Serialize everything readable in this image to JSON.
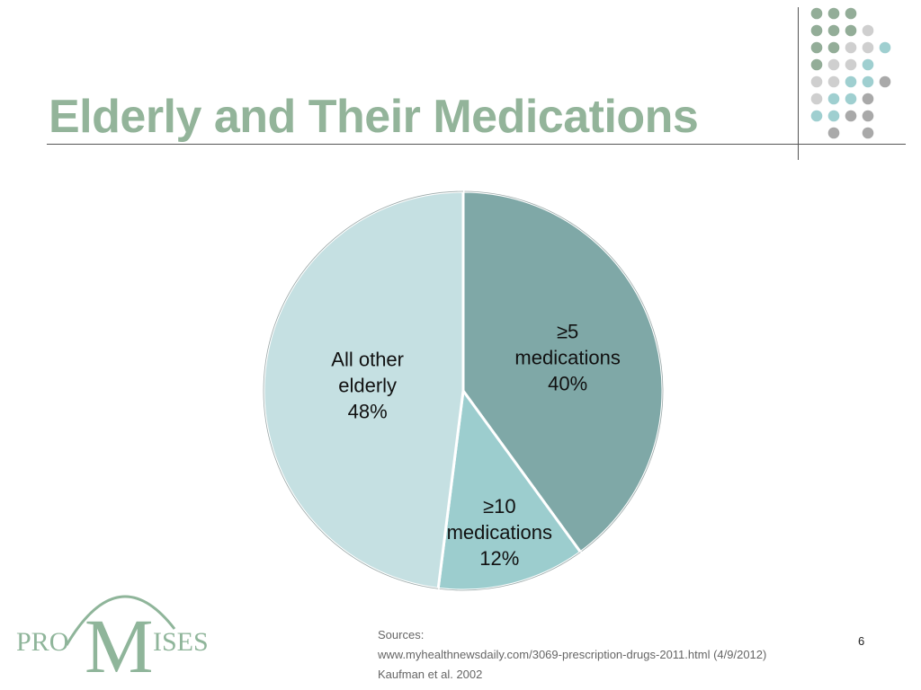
{
  "slide": {
    "title": "Elderly and Their Medications",
    "page_number": "6",
    "sources": {
      "heading": "Sources:",
      "line1": "www.myhealthnewsdaily.com/3069-prescription-drugs-2011.html (4/9/2012)",
      "line2": "Kaufman et al. 2002"
    },
    "logo_text": {
      "left": "PRO",
      "center": "M",
      "right": "ISES"
    }
  },
  "colors": {
    "title": "#93b49a",
    "dot_green": "#93ad98",
    "dot_light_gray": "#cfcfcf",
    "dot_teal": "#9fcfd0",
    "dot_dark_gray": "#a9a9a9",
    "logo": "#8fb59a"
  },
  "chart_data": {
    "type": "pie",
    "start_angle_deg": 0,
    "direction": "clockwise",
    "slices": [
      {
        "label_lines": [
          "≥5",
          "medications",
          "40%"
        ],
        "value": 40,
        "color": "#7fa8a7"
      },
      {
        "label_lines": [
          "≥10",
          "medications",
          "12%"
        ],
        "value": 12,
        "color": "#9ccdce"
      },
      {
        "label_lines": [
          "All other",
          "elderly",
          "48%"
        ],
        "value": 48,
        "color": "#c5e0e2"
      }
    ]
  }
}
